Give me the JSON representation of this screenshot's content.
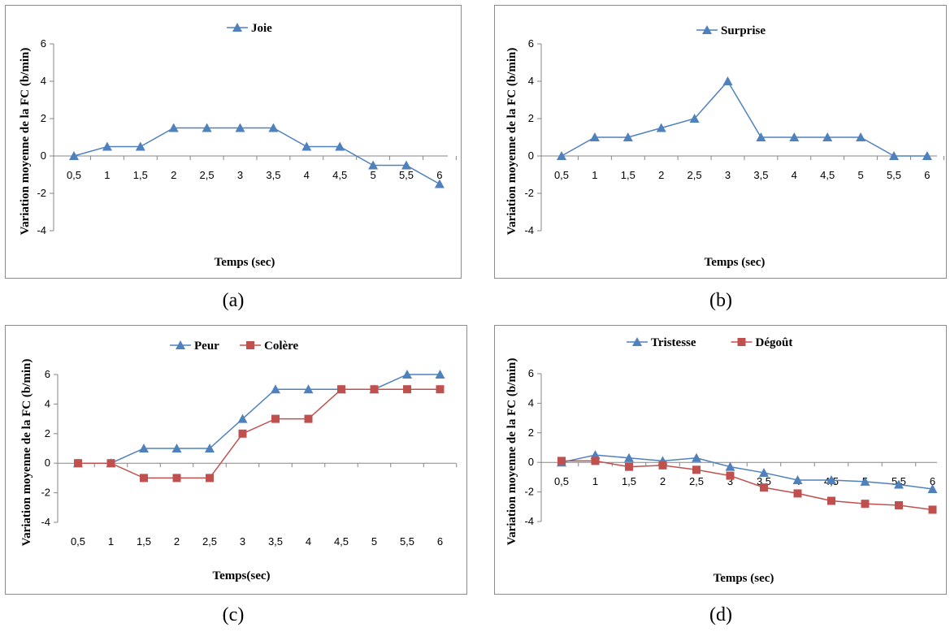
{
  "colors": {
    "blue": "#4f81bd",
    "red": "#c0504d",
    "axis": "#868686"
  },
  "chart_data": [
    {
      "type": "line",
      "caption": "(a)",
      "x": [
        "0,5",
        "1",
        "1,5",
        "2",
        "2,5",
        "3",
        "3,5",
        "4",
        "4,5",
        "5",
        "5,5",
        "6"
      ],
      "ylabel": "Variation moyenne de la FC (b/min)",
      "xlabel": "Temps (sec)",
      "yticks": [
        "6",
        "4",
        "2",
        "0",
        "-2",
        "-4"
      ],
      "ylim": [
        -4,
        6
      ],
      "legend_position": "top",
      "series": [
        {
          "name": "Joie",
          "color": "#4f81bd",
          "marker": "triangle",
          "values": [
            0,
            0.5,
            0.5,
            1.5,
            1.5,
            1.5,
            1.5,
            0.5,
            0.5,
            -0.5,
            -0.5,
            -1.5
          ]
        }
      ]
    },
    {
      "type": "line",
      "caption": "(b)",
      "x": [
        "0,5",
        "1",
        "1,5",
        "2",
        "2,5",
        "3",
        "3,5",
        "4",
        "4,5",
        "5",
        "5,5",
        "6"
      ],
      "ylabel": "Variation moyenne de la FC (b/min)",
      "xlabel": "Temps (sec)",
      "yticks": [
        "6",
        "4",
        "2",
        "0",
        "-2",
        "-4"
      ],
      "ylim": [
        -4,
        6
      ],
      "legend_position": "top",
      "series": [
        {
          "name": "Surprise",
          "color": "#4f81bd",
          "marker": "triangle",
          "values": [
            0,
            1,
            1,
            1.5,
            2,
            4,
            1,
            1,
            1,
            1,
            0,
            0
          ]
        }
      ]
    },
    {
      "type": "line",
      "caption": "(c)",
      "x": [
        "0,5",
        "1",
        "1,5",
        "2",
        "2,5",
        "3",
        "3,5",
        "4",
        "4,5",
        "5",
        "5,5",
        "6"
      ],
      "ylabel": "Variation moyenne de la FC (b/min)",
      "xlabel": "Temps(sec)",
      "yticks": [
        "6",
        "4",
        "2",
        "0",
        "-2",
        "-4"
      ],
      "ylim": [
        -4,
        6
      ],
      "legend_position": "top",
      "series": [
        {
          "name": "Peur",
          "color": "#4f81bd",
          "marker": "triangle",
          "values": [
            0,
            0,
            1,
            1,
            1,
            3,
            5,
            5,
            5,
            5,
            6,
            6
          ]
        },
        {
          "name": "Colère",
          "color": "#c0504d",
          "marker": "square",
          "values": [
            0,
            0,
            -1,
            -1,
            -1,
            2,
            3,
            3,
            5,
            5,
            5,
            5
          ]
        }
      ]
    },
    {
      "type": "line",
      "caption": "(d)",
      "x": [
        "0,5",
        "1",
        "1,5",
        "2",
        "2,5",
        "3",
        "3,5",
        "4",
        "4,5",
        "5",
        "5,5",
        "6"
      ],
      "ylabel": "Variation moyenne de la FC (b/min)",
      "xlabel": "Temps (sec)",
      "yticks": [
        "6",
        "4",
        "2",
        "0",
        "-2",
        "-4"
      ],
      "ylim": [
        -4,
        6
      ],
      "legend_position": "top",
      "series": [
        {
          "name": "Tristesse",
          "color": "#4f81bd",
          "marker": "triangle",
          "values": [
            0,
            0.5,
            0.3,
            0.1,
            0.3,
            -0.3,
            -0.7,
            -1.2,
            -1.2,
            -1.3,
            -1.5,
            -1.8
          ]
        },
        {
          "name": "Dégoût",
          "color": "#c0504d",
          "marker": "square",
          "values": [
            0.1,
            0.1,
            -0.3,
            -0.2,
            -0.5,
            -0.9,
            -1.7,
            -2.1,
            -2.6,
            -2.8,
            -2.9,
            -3.2
          ]
        }
      ]
    }
  ]
}
